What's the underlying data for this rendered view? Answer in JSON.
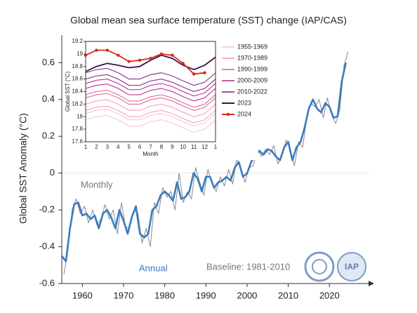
{
  "chart_data": [
    {
      "type": "line",
      "title": "Global mean sea surface temperature (SST) change (IAP/CAS)",
      "y_label": "Global SST Anomaly (°C)",
      "annotations": [
        "Monthly",
        "Annual",
        "Baseline: 1981-2010"
      ],
      "logo_text": "IAP",
      "xlim": [
        1955,
        2029.5
      ],
      "ylim": [
        -0.6,
        0.75
      ],
      "xticks": [
        1960,
        1970,
        1980,
        1990,
        2000,
        2010,
        2020
      ],
      "yticks": [
        -0.6,
        -0.4,
        -0.2,
        0,
        0.2,
        0.4,
        0.6
      ],
      "series": [
        {
          "name": "Monthly",
          "color": "#8a8a8a",
          "x": [
            1955.5,
            1956.5,
            1957.5,
            1958.5,
            1959.5,
            1960.5,
            1961.5,
            1962.5,
            1963.5,
            1964.5,
            1965.5,
            1966.5,
            1967.5,
            1968.5,
            1969.5,
            1970.5,
            1971.5,
            1972.5,
            1973.5,
            1974.5,
            1975.5,
            1976.5,
            1977.5,
            1978.5,
            1979.5,
            1980.5,
            1981.5,
            1982.5,
            1983.5,
            1984.5,
            1985.5,
            1986.5,
            1987.5,
            1988.5,
            1989.5,
            1990.5,
            1991.5,
            1992.5,
            1993.5,
            1994.5,
            1995.5,
            1996.5,
            1997.5,
            1998.5,
            1999.5,
            2000.5,
            2001.5,
            2002.5,
            2003.5,
            2004.5,
            2005.5,
            2006.5,
            2007.5,
            2008.5,
            2009.5,
            2010.5,
            2011.5,
            2012.5,
            2013.5,
            2014.5,
            2015.5,
            2016.5,
            2017.5,
            2018.5,
            2019.5,
            2020.5,
            2021.5,
            2022.5,
            2023.5,
            2024.5
          ],
          "values": [
            -0.55,
            -0.42,
            -0.2,
            -0.14,
            -0.22,
            -0.18,
            -0.27,
            -0.2,
            -0.28,
            -0.25,
            -0.17,
            -0.25,
            -0.2,
            -0.33,
            -0.16,
            -0.3,
            -0.29,
            -0.2,
            -0.22,
            -0.38,
            -0.3,
            -0.4,
            -0.16,
            -0.22,
            -0.08,
            -0.13,
            -0.1,
            -0.2,
            0.0,
            -0.16,
            -0.1,
            -0.14,
            0.03,
            -0.05,
            -0.12,
            0.02,
            -0.06,
            -0.1,
            -0.02,
            -0.07,
            0.02,
            -0.06,
            0.08,
            0.02,
            -0.05,
            0.03,
            0.04,
            0.14,
            0.09,
            0.13,
            0.1,
            0.15,
            0.05,
            0.1,
            0.18,
            0.13,
            0.04,
            0.17,
            0.14,
            0.3,
            0.38,
            0.36,
            0.4,
            0.3,
            0.41,
            0.32,
            0.27,
            0.34,
            0.58,
            0.66
          ]
        },
        {
          "name": "Annual",
          "color": "#3a7bbf",
          "x": [
            1955,
            1956,
            1957,
            1958,
            1959,
            1960,
            1961,
            1962,
            1963,
            1964,
            1965,
            1966,
            1967,
            1968,
            1969,
            1970,
            1971,
            1972,
            1973,
            1974,
            1975,
            1976,
            1977,
            1978,
            1979,
            1980,
            1981,
            1982,
            1983,
            1984,
            1985,
            1986,
            1987,
            1988,
            1989,
            1990,
            1991,
            1992,
            1993,
            1994,
            1995,
            1996,
            1997,
            1998,
            1999,
            2000,
            2001,
            2002,
            2003,
            2004,
            2005,
            2006,
            2007,
            2008,
            2009,
            2010,
            2011,
            2012,
            2013,
            2014,
            2015,
            2016,
            2017,
            2018,
            2019,
            2020,
            2021,
            2022,
            2023,
            2024
          ],
          "values": [
            -0.45,
            -0.48,
            -0.3,
            -0.17,
            -0.16,
            -0.23,
            -0.22,
            -0.25,
            -0.23,
            -0.3,
            -0.22,
            -0.2,
            -0.24,
            -0.3,
            -0.2,
            -0.26,
            -0.33,
            -0.24,
            -0.18,
            -0.33,
            -0.35,
            -0.33,
            -0.2,
            -0.18,
            -0.12,
            -0.1,
            -0.12,
            -0.15,
            -0.05,
            -0.14,
            -0.13,
            -0.1,
            0.0,
            -0.03,
            -0.1,
            -0.02,
            -0.02,
            -0.08,
            -0.05,
            -0.04,
            -0.02,
            -0.04,
            0.03,
            0.06,
            -0.02,
            0.0,
            0.06,
            0.1,
            0.12,
            0.1,
            0.13,
            0.12,
            0.09,
            0.07,
            0.14,
            0.17,
            0.07,
            0.14,
            0.17,
            0.25,
            0.35,
            0.4,
            0.35,
            0.33,
            0.38,
            0.36,
            0.3,
            0.31,
            0.5,
            0.6
          ]
        }
      ]
    },
    {
      "type": "line",
      "y_label": "Global SST (°C)",
      "x_label": "Month",
      "categories": [
        "1",
        "2",
        "3",
        "4",
        "5",
        "6",
        "7",
        "8",
        "9",
        "10",
        "11",
        "12",
        "1"
      ],
      "ylim": [
        17.6,
        19.2
      ],
      "yticks": [
        17.6,
        17.8,
        18,
        18.2,
        18.4,
        18.6,
        18.8,
        19,
        19.2
      ],
      "series": [
        {
          "name": "1955-1969",
          "color": "#f4c2cc",
          "values": [
            [
              17.95,
              18,
              18.02,
              17.95,
              17.85,
              17.85,
              17.92,
              17.95,
              17.9,
              17.82,
              17.75,
              17.8,
              17.95
            ],
            [
              18.05,
              18.1,
              18.12,
              18.05,
              17.95,
              17.95,
              18.02,
              18.05,
              18,
              17.92,
              17.85,
              17.9,
              18.05
            ]
          ]
        },
        {
          "name": "1970-1989",
          "color": "#f29ab0",
          "values": [
            [
              18.1,
              18.15,
              18.17,
              18.1,
              18,
              18,
              18.07,
              18.1,
              18.05,
              17.97,
              17.9,
              17.95,
              18.1
            ],
            [
              18.2,
              18.25,
              18.27,
              18.2,
              18.1,
              18.1,
              18.17,
              18.2,
              18.15,
              18.07,
              18,
              18.05,
              18.2
            ]
          ]
        },
        {
          "name": "1990-1999",
          "color": "#e05a8e",
          "values": [
            [
              18.3,
              18.35,
              18.37,
              18.3,
              18.2,
              18.2,
              18.27,
              18.3,
              18.25,
              18.17,
              18.1,
              18.15,
              18.3
            ],
            [
              18.35,
              18.4,
              18.42,
              18.35,
              18.25,
              18.25,
              18.32,
              18.35,
              18.3,
              18.22,
              18.15,
              18.2,
              18.35
            ]
          ]
        },
        {
          "name": "2000-2009",
          "color": "#b0208a",
          "values": [
            [
              18.45,
              18.5,
              18.52,
              18.45,
              18.35,
              18.35,
              18.42,
              18.45,
              18.4,
              18.32,
              18.25,
              18.3,
              18.45
            ],
            [
              18.53,
              18.58,
              18.6,
              18.53,
              18.43,
              18.43,
              18.5,
              18.53,
              18.48,
              18.4,
              18.33,
              18.38,
              18.53
            ]
          ]
        },
        {
          "name": "2010-2022",
          "color": "#7a1a7e",
          "values": [
            [
              18.6,
              18.65,
              18.67,
              18.6,
              18.5,
              18.5,
              18.57,
              18.6,
              18.55,
              18.47,
              18.4,
              18.45,
              18.6
            ],
            [
              18.7,
              18.75,
              18.77,
              18.7,
              18.6,
              18.6,
              18.67,
              18.7,
              18.65,
              18.57,
              18.5,
              18.55,
              18.7
            ]
          ]
        },
        {
          "name": "2023",
          "color": "#3d0f4e",
          "values": [
            18.72,
            18.8,
            18.85,
            18.82,
            18.78,
            18.8,
            18.9,
            18.98,
            18.93,
            18.82,
            18.75,
            18.82,
            18.95
          ]
        },
        {
          "name": "2024",
          "color": "#d62a1c",
          "values": [
            18.98,
            19.06,
            19.06,
            18.98,
            18.88,
            18.9,
            18.93,
            19.0,
            18.98,
            18.85,
            18.68,
            18.7,
            null
          ]
        }
      ]
    }
  ]
}
